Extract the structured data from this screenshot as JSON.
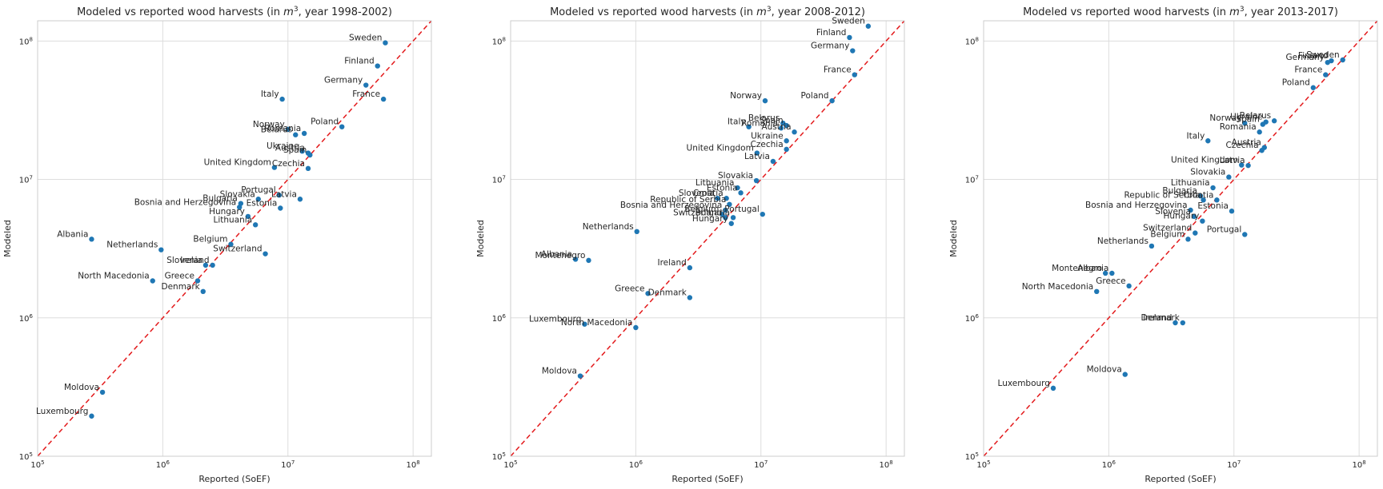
{
  "figure": {
    "colors": {
      "point": "#1f77b4",
      "identity_line": "#e31a1c",
      "grid": "#dddddd",
      "frame": "#cccccc"
    }
  },
  "chart_data": [
    {
      "type": "scatter",
      "title": "Modeled vs reported wood harvests (in m³, year 1998-2002)",
      "title_parts": {
        "prefix": "Modeled vs reported wood harvests (in ",
        "unit_base": "m",
        "unit_sup": "3",
        "suffix": ", year 1998-2002)"
      },
      "xlabel": "Reported (SoEF)",
      "ylabel": "Modeled",
      "xscale": "log",
      "yscale": "log",
      "xlim": [
        100000,
        140000000
      ],
      "ylim": [
        100000,
        140000000
      ],
      "ticks": [
        {
          "value": 100000,
          "base": "10",
          "exp": "5"
        },
        {
          "value": 1000000,
          "base": "10",
          "exp": "6"
        },
        {
          "value": 10000000,
          "base": "10",
          "exp": "7"
        },
        {
          "value": 100000000,
          "base": "10",
          "exp": "8"
        }
      ],
      "grid": true,
      "identity_line": true,
      "points": [
        {
          "label": "Sweden",
          "x": 60000000,
          "y": 97000000
        },
        {
          "label": "Finland",
          "x": 52000000,
          "y": 66000000
        },
        {
          "label": "Germany",
          "x": 42000000,
          "y": 48000000
        },
        {
          "label": "France",
          "x": 58000000,
          "y": 38000000
        },
        {
          "label": "Italy",
          "x": 9000000,
          "y": 38000000
        },
        {
          "label": "Poland",
          "x": 27000000,
          "y": 24000000
        },
        {
          "label": "Norway",
          "x": 10000000,
          "y": 23000000
        },
        {
          "label": "Romania",
          "x": 13500000,
          "y": 21500000
        },
        {
          "label": "Belarus",
          "x": 11500000,
          "y": 21000000
        },
        {
          "label": "Ukraine",
          "x": 13000000,
          "y": 16000000
        },
        {
          "label": "Austria",
          "x": 14500000,
          "y": 15500000
        },
        {
          "label": "Spain",
          "x": 15000000,
          "y": 15000000
        },
        {
          "label": "United Kingdom",
          "x": 7800000,
          "y": 12200000
        },
        {
          "label": "Czechia",
          "x": 14500000,
          "y": 12000000
        },
        {
          "label": "Portugal",
          "x": 8500000,
          "y": 7700000
        },
        {
          "label": "Slovakia",
          "x": 5800000,
          "y": 7200000
        },
        {
          "label": "Latvia",
          "x": 12500000,
          "y": 7200000
        },
        {
          "label": "Bulgaria",
          "x": 4200000,
          "y": 6700000
        },
        {
          "label": "Bosnia and Herzegovina",
          "x": 4100000,
          "y": 6300000
        },
        {
          "label": "Estonia",
          "x": 8700000,
          "y": 6200000
        },
        {
          "label": "Hungary",
          "x": 4800000,
          "y": 5400000
        },
        {
          "label": "Lithuania",
          "x": 5500000,
          "y": 4700000
        },
        {
          "label": "Albania",
          "x": 270000,
          "y": 3700000
        },
        {
          "label": "Belgium",
          "x": 3500000,
          "y": 3400000
        },
        {
          "label": "Netherlands",
          "x": 970000,
          "y": 3100000
        },
        {
          "label": "Switzerland",
          "x": 6600000,
          "y": 2900000
        },
        {
          "label": "Slovenia",
          "x": 2200000,
          "y": 2400000
        },
        {
          "label": "Ireland",
          "x": 2500000,
          "y": 2400000
        },
        {
          "label": "North Macedonia",
          "x": 830000,
          "y": 1850000
        },
        {
          "label": "Greece",
          "x": 1900000,
          "y": 1850000
        },
        {
          "label": "Denmark",
          "x": 2100000,
          "y": 1550000
        },
        {
          "label": "Moldova",
          "x": 330000,
          "y": 290000
        },
        {
          "label": "Luxembourg",
          "x": 270000,
          "y": 195000
        }
      ]
    },
    {
      "type": "scatter",
      "title": "Modeled vs reported wood harvests (in m³, year 2008-2012)",
      "title_parts": {
        "prefix": "Modeled vs reported wood harvests (in ",
        "unit_base": "m",
        "unit_sup": "3",
        "suffix": ", year 2008-2012)"
      },
      "xlabel": "Reported (SoEF)",
      "ylabel": "Modeled",
      "xscale": "log",
      "yscale": "log",
      "xlim": [
        100000,
        140000000
      ],
      "ylim": [
        100000,
        140000000
      ],
      "ticks": [
        {
          "value": 100000,
          "base": "10",
          "exp": "5"
        },
        {
          "value": 1000000,
          "base": "10",
          "exp": "6"
        },
        {
          "value": 10000000,
          "base": "10",
          "exp": "7"
        },
        {
          "value": 100000000,
          "base": "10",
          "exp": "8"
        }
      ],
      "grid": true,
      "identity_line": true,
      "points": [
        {
          "label": "Sweden",
          "x": 72000000,
          "y": 128000000
        },
        {
          "label": "Finland",
          "x": 51000000,
          "y": 106000000
        },
        {
          "label": "Germany",
          "x": 54000000,
          "y": 85000000
        },
        {
          "label": "France",
          "x": 56000000,
          "y": 57000000
        },
        {
          "label": "Norway",
          "x": 10800000,
          "y": 37000000
        },
        {
          "label": "Poland",
          "x": 37000000,
          "y": 37000000
        },
        {
          "label": "Belarus",
          "x": 15000000,
          "y": 25500000
        },
        {
          "label": "Spain",
          "x": 16000000,
          "y": 24500000
        },
        {
          "label": "Italy",
          "x": 8000000,
          "y": 24000000
        },
        {
          "label": "Romania",
          "x": 14500000,
          "y": 23500000
        },
        {
          "label": "Austria",
          "x": 18500000,
          "y": 22000000
        },
        {
          "label": "Ukraine",
          "x": 16000000,
          "y": 19000000
        },
        {
          "label": "Czechia",
          "x": 16000000,
          "y": 16500000
        },
        {
          "label": "United Kingdom",
          "x": 9300000,
          "y": 15500000
        },
        {
          "label": "Latvia",
          "x": 12500000,
          "y": 13500000
        },
        {
          "label": "Slovakia",
          "x": 9200000,
          "y": 9800000
        },
        {
          "label": "Lithuania",
          "x": 6500000,
          "y": 8700000
        },
        {
          "label": "Estonia",
          "x": 6900000,
          "y": 8000000
        },
        {
          "label": "Slovenia",
          "x": 4500000,
          "y": 7300000
        },
        {
          "label": "Croatia",
          "x": 5300000,
          "y": 7300000
        },
        {
          "label": "Republic of Serbia",
          "x": 5600000,
          "y": 6600000
        },
        {
          "label": "Bosnia and Herzegovina",
          "x": 5200000,
          "y": 6000000
        },
        {
          "label": "Belgium",
          "x": 4900000,
          "y": 5600000
        },
        {
          "label": "Portugal",
          "x": 10300000,
          "y": 5600000
        },
        {
          "label": "Switzerland",
          "x": 5200000,
          "y": 5300000
        },
        {
          "label": "Bulgaria",
          "x": 6000000,
          "y": 5300000
        },
        {
          "label": "Hungary",
          "x": 5800000,
          "y": 4800000
        },
        {
          "label": "Netherlands",
          "x": 1020000,
          "y": 4200000
        },
        {
          "label": "Albania",
          "x": 330000,
          "y": 2650000
        },
        {
          "label": "Montenegro",
          "x": 420000,
          "y": 2600000
        },
        {
          "label": "Ireland",
          "x": 2700000,
          "y": 2300000
        },
        {
          "label": "Greece",
          "x": 1250000,
          "y": 1500000
        },
        {
          "label": "Denmark",
          "x": 2700000,
          "y": 1400000
        },
        {
          "label": "Luxembourg",
          "x": 390000,
          "y": 900000
        },
        {
          "label": "North Macedonia",
          "x": 1000000,
          "y": 850000
        },
        {
          "label": "Moldova",
          "x": 360000,
          "y": 380000
        }
      ]
    },
    {
      "type": "scatter",
      "title": "Modeled vs reported wood harvests (in m³, year 2013-2017)",
      "title_parts": {
        "prefix": "Modeled vs reported wood harvests (in ",
        "unit_base": "m",
        "unit_sup": "3",
        "suffix": ", year 2013-2017)"
      },
      "xlabel": "Reported (SoEF)",
      "ylabel": "Modeled",
      "xscale": "log",
      "yscale": "log",
      "xlim": [
        100000,
        140000000
      ],
      "ylim": [
        100000,
        140000000
      ],
      "ticks": [
        {
          "value": 100000,
          "base": "10",
          "exp": "5"
        },
        {
          "value": 1000000,
          "base": "10",
          "exp": "6"
        },
        {
          "value": 10000000,
          "base": "10",
          "exp": "7"
        },
        {
          "value": 100000000,
          "base": "10",
          "exp": "8"
        }
      ],
      "grid": true,
      "identity_line": true,
      "points": [
        {
          "label": "Sweden",
          "x": 74000000,
          "y": 73000000
        },
        {
          "label": "Finland",
          "x": 60000000,
          "y": 72000000
        },
        {
          "label": "Germany",
          "x": 56000000,
          "y": 70000000
        },
        {
          "label": "France",
          "x": 54000000,
          "y": 57000000
        },
        {
          "label": "Poland",
          "x": 43000000,
          "y": 46000000
        },
        {
          "label": "Belarus",
          "x": 21000000,
          "y": 26500000
        },
        {
          "label": "Ukraine",
          "x": 18000000,
          "y": 26000000
        },
        {
          "label": "Norway",
          "x": 12200000,
          "y": 25500000
        },
        {
          "label": "Spain",
          "x": 17000000,
          "y": 25000000
        },
        {
          "label": "Romania",
          "x": 16000000,
          "y": 22000000
        },
        {
          "label": "Italy",
          "x": 6200000,
          "y": 19000000
        },
        {
          "label": "Austria",
          "x": 17500000,
          "y": 17000000
        },
        {
          "label": "Czechia",
          "x": 16700000,
          "y": 16200000
        },
        {
          "label": "United Kingdom",
          "x": 11500000,
          "y": 12700000
        },
        {
          "label": "Latvia",
          "x": 13000000,
          "y": 12600000
        },
        {
          "label": "Slovakia",
          "x": 9100000,
          "y": 10400000
        },
        {
          "label": "Lithuania",
          "x": 6800000,
          "y": 8700000
        },
        {
          "label": "Bulgaria",
          "x": 5400000,
          "y": 7600000
        },
        {
          "label": "Republic of Serbia",
          "x": 5700000,
          "y": 7100000
        },
        {
          "label": "Croatia",
          "x": 7300000,
          "y": 7100000
        },
        {
          "label": "Bosnia and Herzegovina",
          "x": 4500000,
          "y": 6000000
        },
        {
          "label": "Estonia",
          "x": 9600000,
          "y": 5900000
        },
        {
          "label": "Slovenia",
          "x": 4800000,
          "y": 5400000
        },
        {
          "label": "Hungary",
          "x": 5600000,
          "y": 5000000
        },
        {
          "label": "Switzerland",
          "x": 4900000,
          "y": 4100000
        },
        {
          "label": "Portugal",
          "x": 12200000,
          "y": 4000000
        },
        {
          "label": "Belgium",
          "x": 4300000,
          "y": 3700000
        },
        {
          "label": "Netherlands",
          "x": 2200000,
          "y": 3300000
        },
        {
          "label": "Montenegro",
          "x": 940000,
          "y": 2100000
        },
        {
          "label": "Albania",
          "x": 1060000,
          "y": 2100000
        },
        {
          "label": "Greece",
          "x": 1450000,
          "y": 1700000
        },
        {
          "label": "North Macedonia",
          "x": 800000,
          "y": 1550000
        },
        {
          "label": "Ireland",
          "x": 3400000,
          "y": 920000
        },
        {
          "label": "Denmark",
          "x": 3900000,
          "y": 920000
        },
        {
          "label": "Moldova",
          "x": 1350000,
          "y": 390000
        },
        {
          "label": "Luxembourg",
          "x": 360000,
          "y": 310000
        }
      ]
    }
  ]
}
